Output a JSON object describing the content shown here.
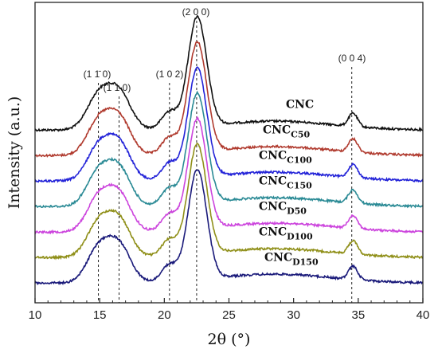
{
  "chart_data": {
    "type": "line",
    "title": "",
    "xlabel": "2θ (°)",
    "ylabel": "Intensity (a.u.)",
    "xlim": [
      10,
      40
    ],
    "xticks": [
      10,
      15,
      20,
      25,
      30,
      35,
      40
    ],
    "y_ticks_shown": false,
    "grid": false,
    "legend": "inline-right",
    "peaks": [
      {
        "label": "(1 1̄ 0)",
        "x": 14.9
      },
      {
        "label": "(1 1 0)",
        "x": 16.5
      },
      {
        "label": "(1 0 2)",
        "x": 20.4
      },
      {
        "label": "(2 0 0)",
        "x": 22.5
      },
      {
        "label": "(0 0 4)",
        "x": 34.5
      }
    ],
    "series": [
      {
        "name": "CNC",
        "name_main": "CNC",
        "name_sub": "",
        "color": "#111111",
        "offset": 6
      },
      {
        "name": "CNCC50",
        "name_main": "CNC",
        "name_sub": "C50",
        "color": "#b03a2e",
        "offset": 5
      },
      {
        "name": "CNCC100",
        "name_main": "CNC",
        "name_sub": "C100",
        "color": "#2323d8",
        "offset": 4
      },
      {
        "name": "CNCC150",
        "name_main": "CNC",
        "name_sub": "C150",
        "color": "#2a8a95",
        "offset": 3
      },
      {
        "name": "CNCD50",
        "name_main": "CNC",
        "name_sub": "D50",
        "color": "#cc44dd",
        "offset": 2
      },
      {
        "name": "CNCD100",
        "name_main": "CNC",
        "name_sub": "D100",
        "color": "#8f8f18",
        "offset": 1
      },
      {
        "name": "CNCD150",
        "name_main": "CNC",
        "name_sub": "D150",
        "color": "#1a1a7a",
        "offset": 0
      }
    ]
  }
}
